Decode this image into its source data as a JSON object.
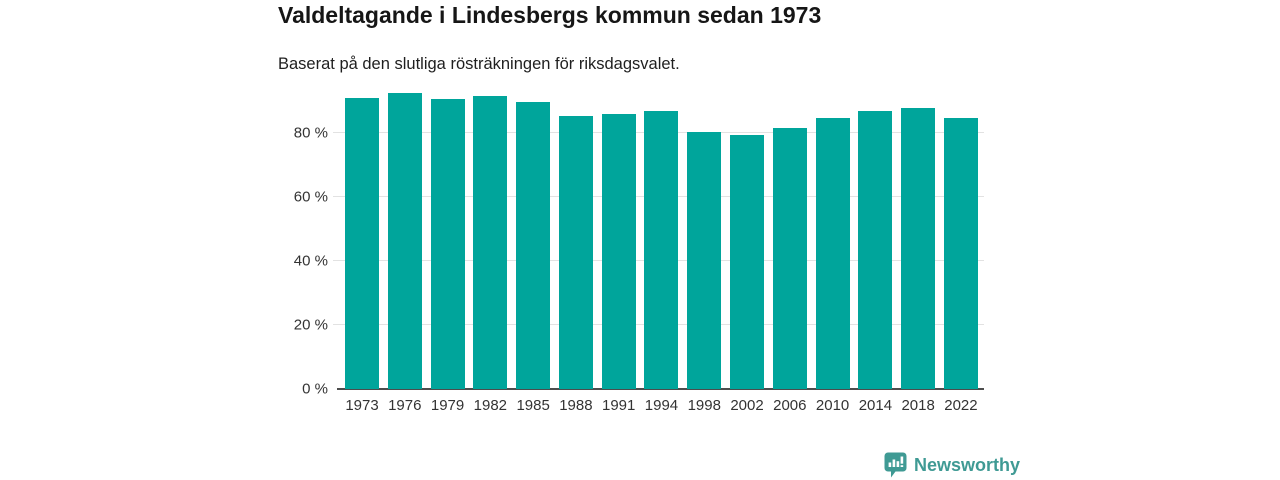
{
  "title": "Valdeltagande i Lindesbergs kommun sedan 1973",
  "subtitle": "Baserat på den slutliga rösträkningen för riksdagsvalet.",
  "branding": {
    "logo_text": "Newsworthy",
    "logo_icon": "newsworthy-badge-icon",
    "logo_color": "#3f9a94"
  },
  "colors": {
    "bar": "#00a59b",
    "gridline": "#e2e2e2",
    "axis_line": "#4d4d4d",
    "tick_label": "#333333",
    "title": "#161616"
  },
  "chart_data": {
    "type": "bar",
    "title": "Valdeltagande i Lindesbergs kommun sedan 1973",
    "subtitle": "Baserat på den slutliga rösträkningen för riksdagsvalet.",
    "categories": [
      "1973",
      "1976",
      "1979",
      "1982",
      "1985",
      "1988",
      "1991",
      "1994",
      "1998",
      "2002",
      "2006",
      "2010",
      "2014",
      "2018",
      "2022"
    ],
    "values": [
      91.0,
      92.5,
      90.7,
      91.6,
      89.8,
      85.4,
      86.0,
      87.0,
      80.2,
      79.3,
      81.6,
      84.7,
      86.8,
      87.8,
      84.7
    ],
    "unit": "%",
    "xlabel": "",
    "ylabel": "",
    "ylim": [
      0,
      95
    ],
    "yticks": [
      0,
      20,
      40,
      60,
      80
    ],
    "ytick_labels": [
      "0 %",
      "20 %",
      "40 %",
      "60 %",
      "80 %"
    ],
    "grid": "horizontal",
    "legend": "none",
    "bar_color": "#00a59b"
  }
}
